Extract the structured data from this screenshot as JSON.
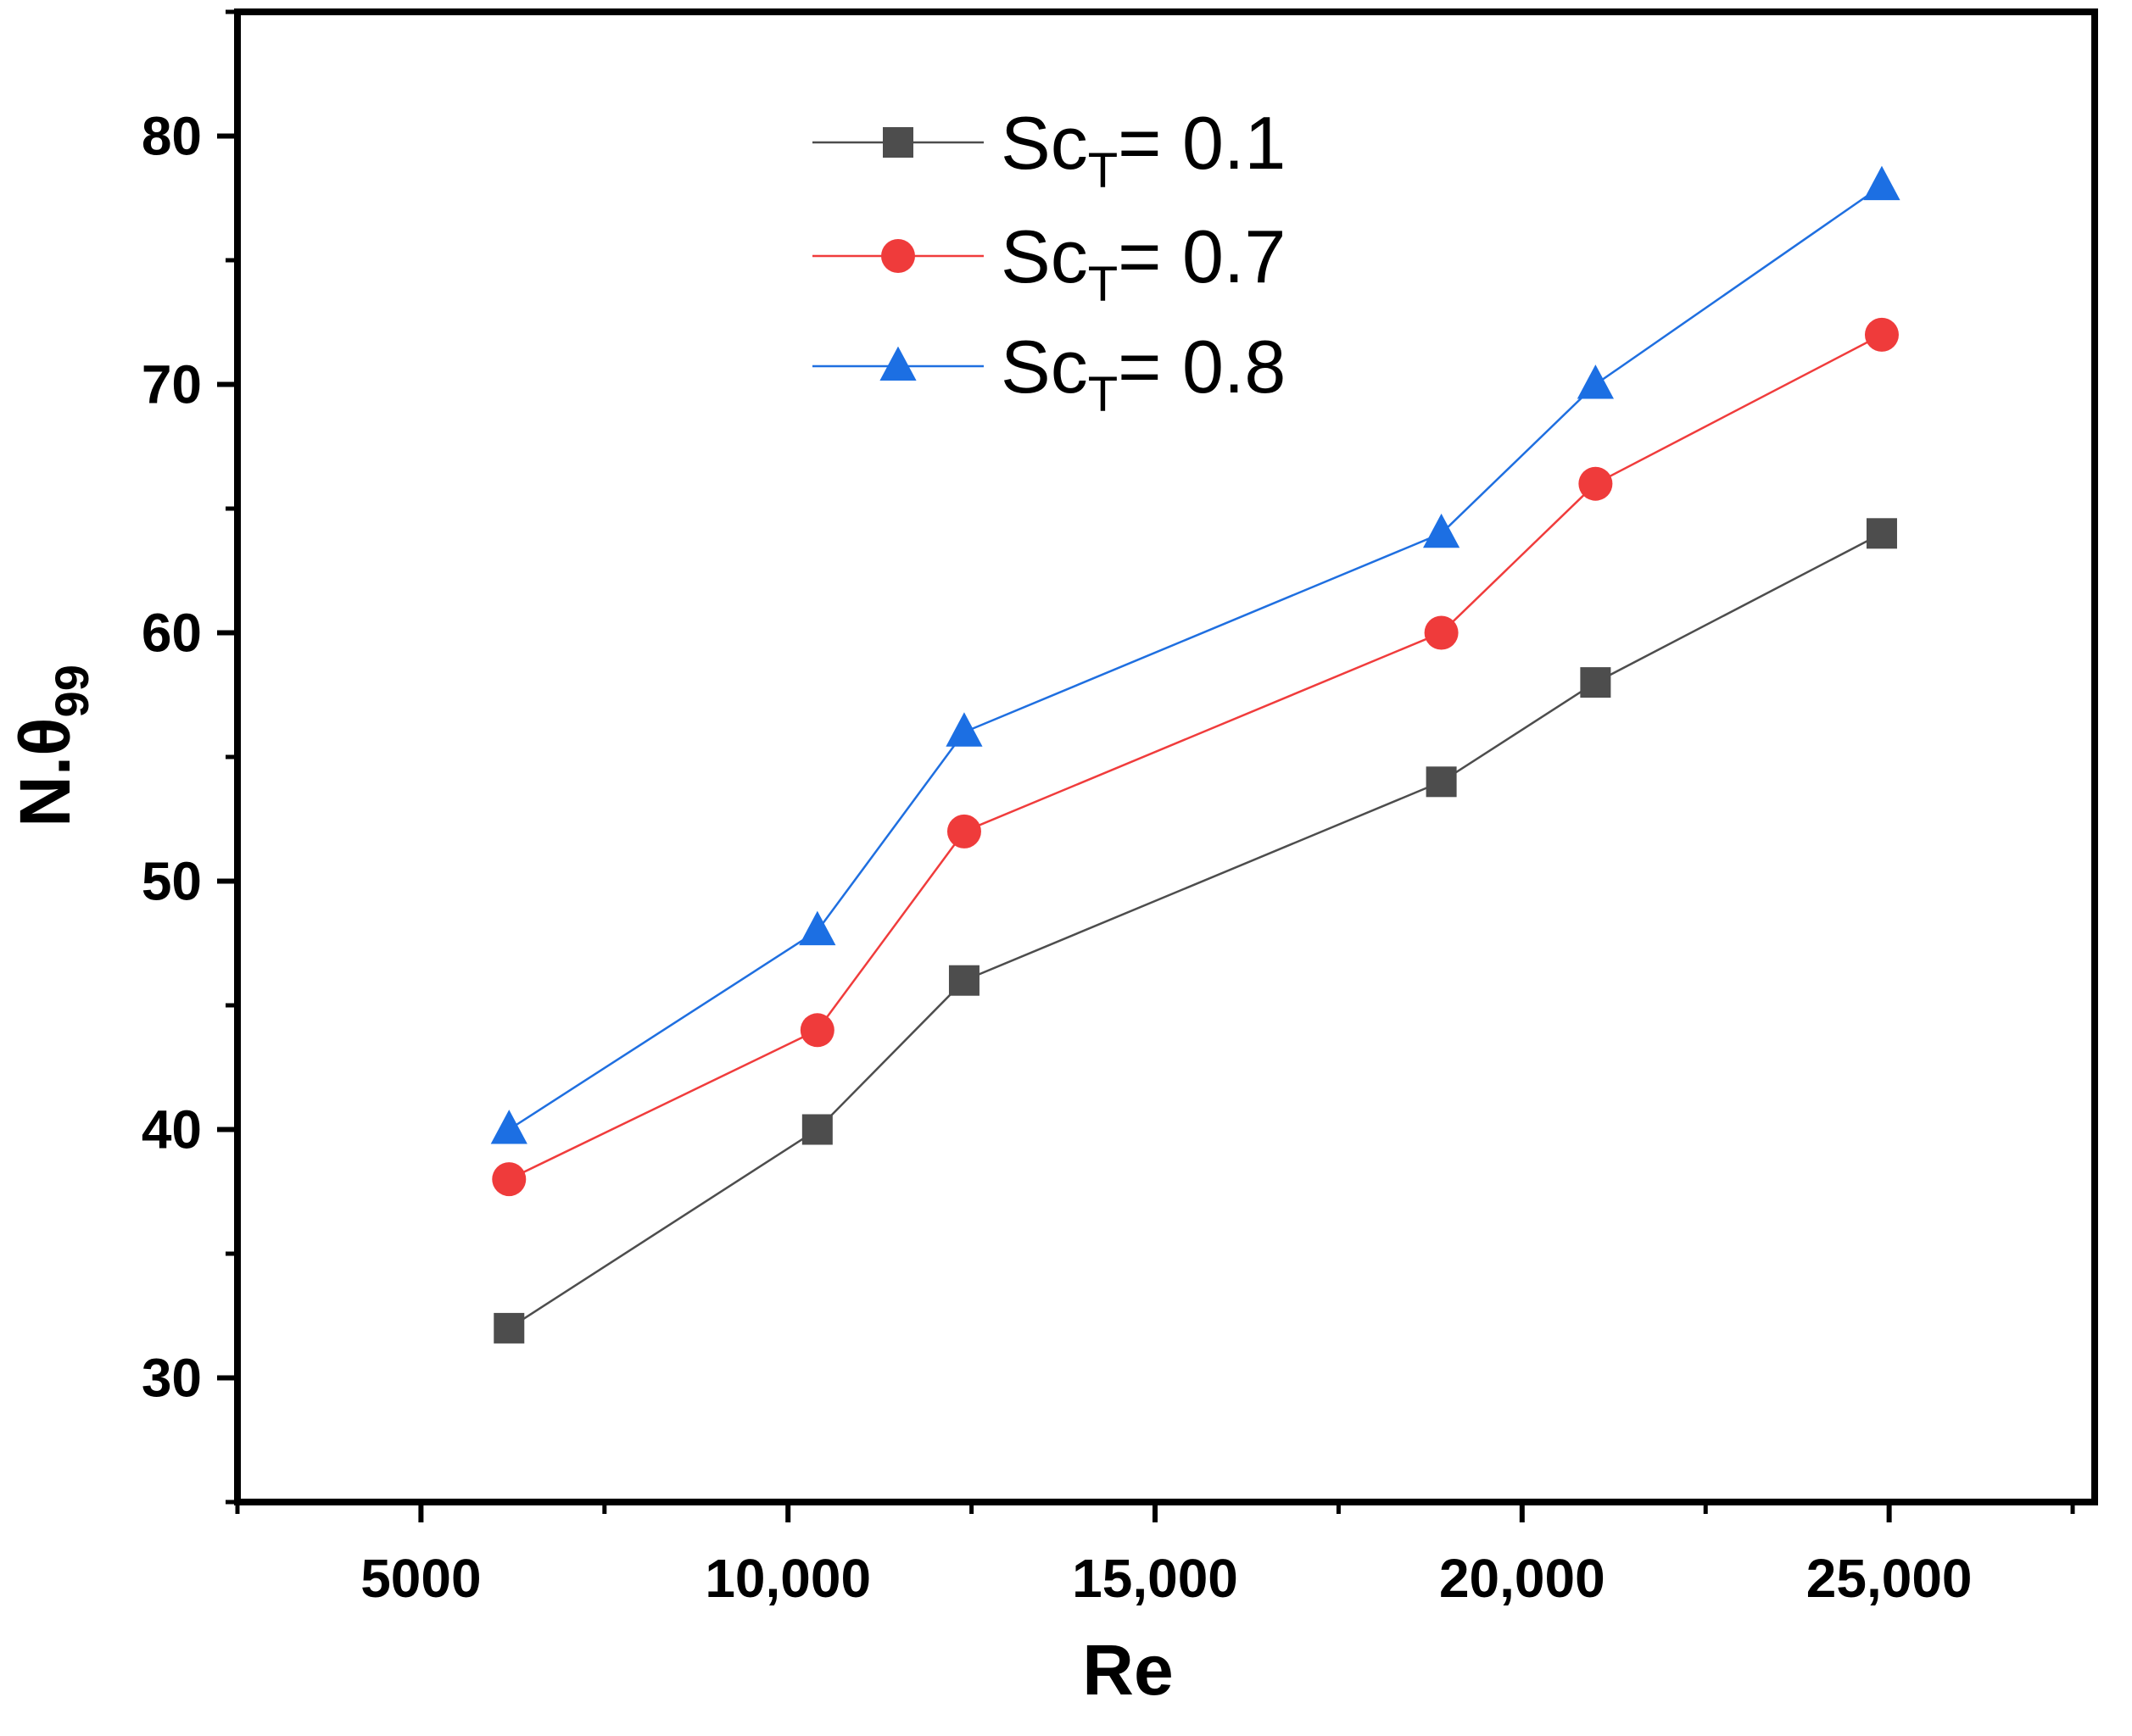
{
  "chart_data": {
    "type": "line",
    "title": "",
    "xlabel": "Re",
    "ylabel": "N.θ99",
    "ylabel_parts": {
      "main": "N.θ",
      "sub": "99"
    },
    "xlim": [
      2500,
      27800
    ],
    "ylim": [
      25,
      85
    ],
    "x_ticks": [
      5000,
      10000,
      15000,
      20000,
      25000
    ],
    "x_tick_labels": [
      "5000",
      "10,000",
      "15,000",
      "20,000",
      "25,000"
    ],
    "y_ticks": [
      30,
      40,
      50,
      60,
      70,
      80
    ],
    "y_tick_labels": [
      "30",
      "40",
      "50",
      "60",
      "70",
      "80"
    ],
    "grid": false,
    "legend_position": "top-center",
    "x": [
      6200,
      10400,
      12400,
      18900,
      21000,
      24900
    ],
    "series": [
      {
        "name": "ScT= 0.1",
        "label_main": "Sc",
        "label_sub": "T",
        "label_value": "= 0.1",
        "marker": "square",
        "line_color": "#4d4d4d",
        "marker_color": "#4d4d4d",
        "values": [
          32,
          40,
          46,
          54,
          58,
          64
        ]
      },
      {
        "name": "ScT= 0.7",
        "label_main": "Sc",
        "label_sub": "T",
        "label_value": "= 0.7",
        "marker": "circle",
        "line_color": "#f03c3c",
        "marker_color": "#ef3b3b",
        "values": [
          38,
          44,
          52,
          60,
          66,
          72
        ]
      },
      {
        "name": "ScT= 0.8",
        "label_main": "Sc",
        "label_sub": "T",
        "label_value": "= 0.8",
        "marker": "triangle",
        "line_color": "#1f6fe0",
        "marker_color": "#1c6fe3",
        "values": [
          40,
          48,
          56,
          64,
          70,
          78
        ]
      }
    ]
  }
}
